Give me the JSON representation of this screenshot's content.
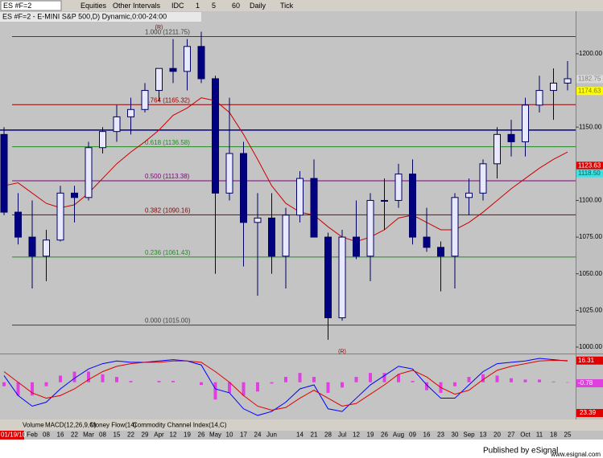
{
  "toolbar": {
    "symbol": "ES #F=2",
    "buttons": [
      "Equities",
      "Other Intervals",
      "IDC",
      "1",
      "5",
      "60",
      "Daily",
      "Tick"
    ]
  },
  "chart_data": [
    {
      "type": "candlestick",
      "title": "ES #F=2 - E-MINI S&P 500,D) Dynamic,0:00-24:00",
      "categories": [
        "01/19/10",
        null,
        "Feb",
        "08",
        "16",
        "22",
        "Mar",
        "08",
        "15",
        "22",
        "29",
        "Apr",
        "12",
        "19",
        "26",
        "May",
        "10",
        "17",
        "24",
        "Jun",
        null,
        "14",
        "21",
        "28",
        "Jul",
        "12",
        "19",
        "26",
        "Aug",
        "09",
        "16",
        "23",
        "30",
        "Sep",
        "13",
        "20",
        "27",
        "Oct",
        "11",
        "18",
        "25"
      ],
      "open": [
        1145,
        1092,
        1075,
        1062,
        1073,
        1105,
        1102,
        1136,
        1147,
        1157,
        1162,
        1175,
        1190,
        1188,
        1205,
        1183,
        1105,
        1132,
        1085,
        1088,
        1062,
        1090,
        1115,
        1075,
        1020,
        1075,
        1062,
        1100,
        1100,
        1118,
        1075,
        1068,
        1062,
        1102,
        1105,
        1125,
        1145,
        1140,
        1165,
        1175,
        1180
      ],
      "high": [
        1150,
        1105,
        1100,
        1080,
        1110,
        1110,
        1140,
        1150,
        1165,
        1170,
        1180,
        1190,
        1210,
        1210,
        1215,
        1185,
        1170,
        1140,
        1105,
        1105,
        1095,
        1120,
        1128,
        1078,
        1080,
        1100,
        1105,
        1115,
        1125,
        1128,
        1095,
        1072,
        1105,
        1115,
        1128,
        1150,
        1155,
        1170,
        1185,
        1190,
        1195
      ],
      "low": [
        1090,
        1070,
        1040,
        1045,
        1072,
        1085,
        1100,
        1132,
        1140,
        1145,
        1160,
        1168,
        1180,
        1175,
        1180,
        1050,
        1100,
        1055,
        1035,
        1050,
        1040,
        1085,
        1075,
        1005,
        1018,
        1060,
        1045,
        1080,
        1095,
        1070,
        1065,
        1038,
        1040,
        1090,
        1100,
        1115,
        1130,
        1130,
        1160,
        1155,
        1175
      ],
      "close": [
        1092,
        1075,
        1062,
        1073,
        1105,
        1102,
        1136,
        1147,
        1157,
        1162,
        1175,
        1190,
        1188,
        1205,
        1183,
        1105,
        1132,
        1085,
        1088,
        1062,
        1090,
        1115,
        1075,
        1020,
        1075,
        1062,
        1100,
        1100,
        1118,
        1075,
        1068,
        1062,
        1102,
        1105,
        1125,
        1145,
        1140,
        1165,
        1175,
        1180,
        1183
      ],
      "up_color": "#e8e8ff",
      "down_color": "#000080",
      "outline_color": "#000060",
      "overlays": [
        {
          "color": "#cc0000",
          "values": [
            1110,
            1112,
            1105,
            1098,
            1095,
            1097,
            1105,
            1115,
            1125,
            1133,
            1140,
            1148,
            1158,
            1163,
            1170,
            1168,
            1160,
            1145,
            1128,
            1110,
            1098,
            1092,
            1090,
            1082,
            1075,
            1072,
            1075,
            1080,
            1088,
            1090,
            1085,
            1080,
            1080,
            1085,
            1092,
            1100,
            1108,
            1115,
            1122,
            1128,
            1133
          ]
        }
      ],
      "ylim": [
        995.6,
        1229
      ],
      "yticks": [
        {
          "value": 1000,
          "label": "1000.00"
        },
        {
          "value": 1025,
          "label": "1025.00"
        },
        {
          "value": 1050,
          "label": "1050.00"
        },
        {
          "value": 1075,
          "label": "1075.00"
        },
        {
          "value": 1100,
          "label": "1100.00"
        },
        {
          "value": 1150,
          "label": "1150.00"
        },
        {
          "value": 1200,
          "label": "1200.00"
        }
      ],
      "fib_levels": [
        {
          "label": "1.000 (1211.75)",
          "value": 1211.75,
          "color": "#404040"
        },
        {
          "label": "0.764 (1165.32)",
          "value": 1165.32,
          "color": "#8b0000"
        },
        {
          "label": "0.618 (1136.58)",
          "value": 1136.58,
          "color": "#228b22"
        },
        {
          "label": "0.500 (1113.38)",
          "value": 1113.38,
          "color": "#800080"
        },
        {
          "label": "0.382 (1090.16)",
          "value": 1090.16,
          "color": "#8b0000"
        },
        {
          "label": "0.236 (1061.43)",
          "value": 1061.43,
          "color": "#228b22"
        },
        {
          "label": "0.000 (1015.00)",
          "value": 1015,
          "color": "#404040"
        }
      ],
      "lines": [
        {
          "value": 1148,
          "color": "#00008b"
        }
      ],
      "price_markers": [
        {
          "value": 1182.75,
          "label": "1182.75",
          "color": "#d8d8d8",
          "text_color": "#808080"
        },
        {
          "value": 1174.63,
          "label": "1174.63",
          "color": "#ffff00",
          "text_color": "#808000"
        },
        {
          "value": 1123.63,
          "label": "1123.63",
          "color": "#e00000",
          "text_color": "#ffffff"
        },
        {
          "value": 1118.5,
          "label": "1118.50",
          "color": "#40e0e0",
          "text_color": "#006060"
        }
      ],
      "annotations": [
        {
          "text": "(R)",
          "x": "Apr",
          "y": 1218
        },
        {
          "text": "(R)",
          "x": "Jul",
          "y": 997
        }
      ]
    },
    {
      "type": "macd",
      "series": [
        {
          "color": "#0000ff",
          "values": [
            5,
            -10,
            -18,
            -15,
            -5,
            3,
            10,
            14,
            16,
            15,
            15,
            16,
            17,
            16,
            13,
            -5,
            -8,
            -20,
            -25,
            -22,
            -15,
            -5,
            -2,
            -20,
            -22,
            -12,
            -2,
            5,
            12,
            10,
            -2,
            -12,
            -12,
            -2,
            8,
            14,
            15,
            16,
            18,
            17,
            16
          ]
        },
        {
          "color": "#e00000",
          "values": [
            8,
            0,
            -8,
            -12,
            -10,
            -5,
            2,
            8,
            12,
            14,
            15,
            15,
            16,
            16,
            15,
            8,
            0,
            -10,
            -18,
            -21,
            -19,
            -12,
            -6,
            -12,
            -18,
            -16,
            -9,
            -2,
            6,
            9,
            4,
            -4,
            -9,
            -6,
            2,
            9,
            12,
            14,
            16,
            16.5,
            16.3
          ]
        }
      ],
      "histogram": {
        "color": "#e040e0",
        "values": [
          -3,
          -10,
          -10,
          -3,
          5,
          8,
          8,
          6,
          4,
          1,
          0,
          1,
          1,
          0,
          -2,
          -13,
          -8,
          -10,
          -7,
          -1,
          4,
          7,
          4,
          -8,
          -4,
          4,
          7,
          7,
          6,
          1,
          -6,
          -8,
          -3,
          4,
          6,
          5,
          3,
          2,
          2,
          0.5,
          -0.3
        ]
      },
      "ylim": [
        -28,
        21
      ],
      "price_markers": [
        {
          "value": 16.31,
          "label": "16.31",
          "color": "#e00000",
          "text_color": "#ffffff"
        },
        {
          "value": -0.78,
          "label": "-0.78",
          "color": "#e040e0",
          "text_color": "#ffffff"
        }
      ],
      "bottom_label": "23.39"
    }
  ],
  "tabs": [
    "Volume",
    "MACD(12,26,9,C)",
    "Money Flow(14)",
    "Commodity Channel Index(14,C)"
  ],
  "footer": {
    "publisher": "Published by eSignal",
    "site": "www.esignal.com"
  }
}
